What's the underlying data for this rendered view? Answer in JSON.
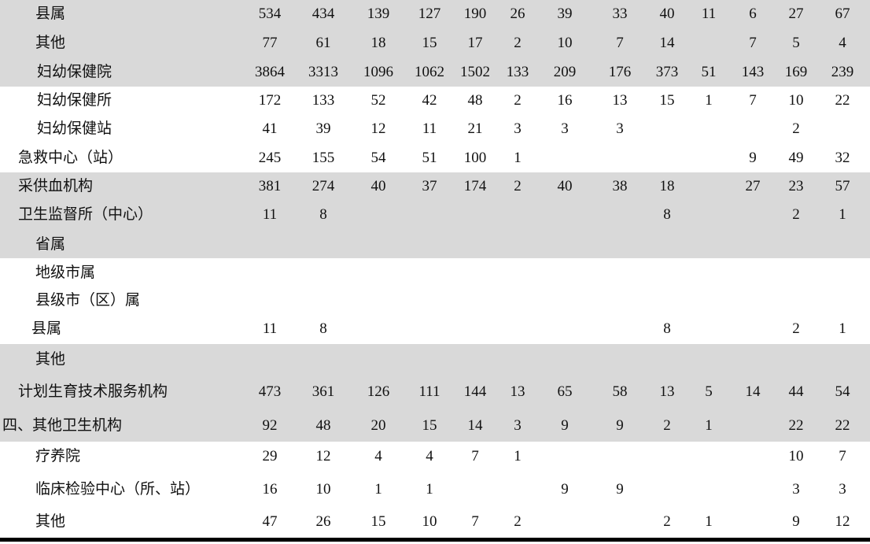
{
  "table": {
    "rows": [
      {
        "label": "县属",
        "values": [
          "534",
          "434",
          "139",
          "127",
          "190",
          "26",
          "39",
          "33",
          "40",
          "11",
          "6",
          "27",
          "67"
        ]
      },
      {
        "label": "其他",
        "values": [
          "77",
          "61",
          "18",
          "15",
          "17",
          "2",
          "10",
          "7",
          "14",
          "",
          "7",
          "5",
          "4"
        ]
      },
      {
        "label": "妇幼保健院",
        "values": [
          "3864",
          "3313",
          "1096",
          "1062",
          "1502",
          "133",
          "209",
          "176",
          "373",
          "51",
          "143",
          "169",
          "239"
        ]
      },
      {
        "label": "妇幼保健所",
        "values": [
          "172",
          "133",
          "52",
          "42",
          "48",
          "2",
          "16",
          "13",
          "15",
          "1",
          "7",
          "10",
          "22"
        ]
      },
      {
        "label": "妇幼保健站",
        "values": [
          "41",
          "39",
          "12",
          "11",
          "21",
          "3",
          "3",
          "3",
          "",
          "",
          "",
          "2",
          ""
        ]
      },
      {
        "label": "急救中心（站）",
        "values": [
          "245",
          "155",
          "54",
          "51",
          "100",
          "1",
          "",
          "",
          "",
          "",
          "9",
          "49",
          "32"
        ]
      },
      {
        "label": "采供血机构",
        "values": [
          "381",
          "274",
          "40",
          "37",
          "174",
          "2",
          "40",
          "38",
          "18",
          "",
          "27",
          "23",
          "57"
        ]
      },
      {
        "label": "卫生监督所（中心）",
        "values": [
          "11",
          "8",
          "",
          "",
          "",
          "",
          "",
          "",
          "8",
          "",
          "",
          "2",
          "1"
        ]
      },
      {
        "label": "省属",
        "values": [
          "",
          "",
          "",
          "",
          "",
          "",
          "",
          "",
          "",
          "",
          "",
          "",
          ""
        ]
      },
      {
        "label": "地级市属",
        "values": [
          "",
          "",
          "",
          "",
          "",
          "",
          "",
          "",
          "",
          "",
          "",
          "",
          ""
        ]
      },
      {
        "label": "县级市（区）属",
        "values": [
          "",
          "",
          "",
          "",
          "",
          "",
          "",
          "",
          "",
          "",
          "",
          "",
          ""
        ]
      },
      {
        "label": "县属",
        "values": [
          "11",
          "8",
          "",
          "",
          "",
          "",
          "",
          "",
          "8",
          "",
          "",
          "2",
          "1"
        ]
      },
      {
        "label": "其他",
        "values": [
          "",
          "",
          "",
          "",
          "",
          "",
          "",
          "",
          "",
          "",
          "",
          "",
          ""
        ]
      },
      {
        "label": "计划生育技术服务机构",
        "values": [
          "473",
          "361",
          "126",
          "111",
          "144",
          "13",
          "65",
          "58",
          "13",
          "5",
          "14",
          "44",
          "54"
        ]
      },
      {
        "label": "四、其他卫生机构",
        "values": [
          "92",
          "48",
          "20",
          "15",
          "14",
          "3",
          "9",
          "9",
          "2",
          "1",
          "",
          "22",
          "22"
        ]
      },
      {
        "label": "疗养院",
        "values": [
          "29",
          "12",
          "4",
          "4",
          "7",
          "1",
          "",
          "",
          "",
          "",
          "",
          "10",
          "7"
        ]
      },
      {
        "label": "临床检验中心（所、站）",
        "values": [
          "16",
          "10",
          "1",
          "1",
          "",
          "",
          "9",
          "9",
          "",
          "",
          "",
          "3",
          "3"
        ]
      },
      {
        "label": "其他",
        "values": [
          "47",
          "26",
          "15",
          "10",
          "7",
          "2",
          "",
          "",
          "2",
          "1",
          "",
          "9",
          "12"
        ]
      }
    ]
  },
  "colors": {
    "band": "#d9d9d9",
    "rule": "#000000"
  }
}
